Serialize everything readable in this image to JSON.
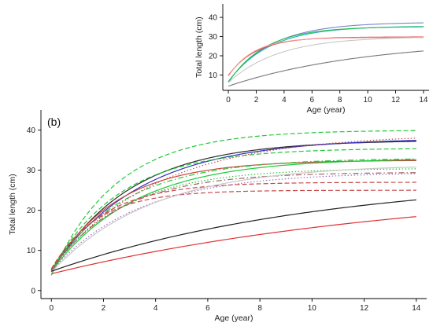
{
  "chart_data": [
    {
      "type": "line",
      "title": "",
      "xlabel": "Age (year)",
      "ylabel": "Total length (cm)",
      "xlim": [
        -0.4,
        14.4
      ],
      "ylim": [
        2,
        47
      ],
      "xticks": [
        0,
        2,
        4,
        6,
        8,
        10,
        12,
        14
      ],
      "yticks": [
        10,
        20,
        30,
        40
      ],
      "grid": false,
      "legend": "none",
      "series": [
        {
          "color": "#7f7fd0",
          "dash": "solid",
          "Linf": 37.5,
          "K": 0.32,
          "t0": -0.6
        },
        {
          "color": "#27b0c8",
          "dash": "solid",
          "Linf": 35.5,
          "K": 0.34,
          "t0": -0.6
        },
        {
          "color": "#22c040",
          "dash": "solid",
          "Linf": 35.2,
          "K": 0.38,
          "t0": -0.5
        },
        {
          "color": "#e04040",
          "dash": "solid",
          "Linf": 29.8,
          "K": 0.5,
          "t0": -0.8
        },
        {
          "color": "#f09a9a",
          "dash": "solid",
          "Linf": 29.5,
          "K": 0.55,
          "t0": -0.7
        },
        {
          "color": "#c8c8c8",
          "dash": "solid",
          "Linf": 30.0,
          "K": 0.28,
          "t0": -0.8
        },
        {
          "color": "#777777",
          "dash": "solid",
          "Linf": 28.5,
          "K": 0.1,
          "t0": -1.6
        }
      ]
    },
    {
      "type": "line",
      "title": "",
      "panel_label": "(b)",
      "xlabel": "Age (year)",
      "ylabel": "Total length (cm)",
      "xlim": [
        -0.4,
        14.4
      ],
      "ylim": [
        -2,
        45
      ],
      "xticks": [
        0,
        2,
        4,
        6,
        8,
        10,
        12,
        14
      ],
      "yticks": [
        0,
        10,
        20,
        30,
        40
      ],
      "grid": false,
      "legend": "none",
      "series": [
        {
          "color": "#22c83a",
          "dash": "dashed",
          "Linf": 40.0,
          "K": 0.4,
          "t0": -0.25
        },
        {
          "color": "#2a2a2a",
          "dash": "solid",
          "Linf": 37.5,
          "K": 0.33,
          "t0": -0.4
        },
        {
          "color": "#3030c0",
          "dash": "solid",
          "Linf": 38.0,
          "K": 0.29,
          "t0": -0.5
        },
        {
          "color": "#22c83a",
          "dash": "dashed",
          "Linf": 35.5,
          "K": 0.38,
          "t0": -0.4
        },
        {
          "color": "#d04040",
          "dash": "solid",
          "Linf": 32.5,
          "K": 0.4,
          "t0": -0.4
        },
        {
          "color": "#22c83a",
          "dash": "dashdot",
          "Linf": 33.0,
          "K": 0.35,
          "t0": -0.5
        },
        {
          "color": "#22c83a",
          "dash": "solid",
          "Linf": 33.0,
          "K": 0.31,
          "t0": -0.5
        },
        {
          "color": "#c84848",
          "dash": "dotted",
          "Linf": 39.0,
          "K": 0.25,
          "t0": -0.6
        },
        {
          "color": "#22c83a",
          "dash": "dotted",
          "Linf": 30.5,
          "K": 0.36,
          "t0": -0.5
        },
        {
          "color": "#a06060",
          "dash": "dashdot",
          "Linf": 29.5,
          "K": 0.38,
          "t0": -0.5
        },
        {
          "color": "#c84848",
          "dash": "dashed",
          "Linf": 27.0,
          "K": 0.5,
          "t0": -0.45
        },
        {
          "color": "#c84848",
          "dash": "dashed",
          "Linf": 25.0,
          "K": 0.58,
          "t0": -0.4
        },
        {
          "color": "#a070c0",
          "dash": "dotted",
          "Linf": 29.5,
          "K": 0.3,
          "t0": -0.6
        },
        {
          "color": "#c8c8c8",
          "dash": "solid",
          "Linf": 31.5,
          "K": 0.26,
          "t0": -0.6
        },
        {
          "color": "#202020",
          "dash": "solid",
          "Linf": 29.0,
          "K": 0.095,
          "t0": -1.9
        },
        {
          "color": "#e03030",
          "dash": "solid",
          "Linf": 27.0,
          "K": 0.07,
          "t0": -2.4
        }
      ]
    }
  ]
}
